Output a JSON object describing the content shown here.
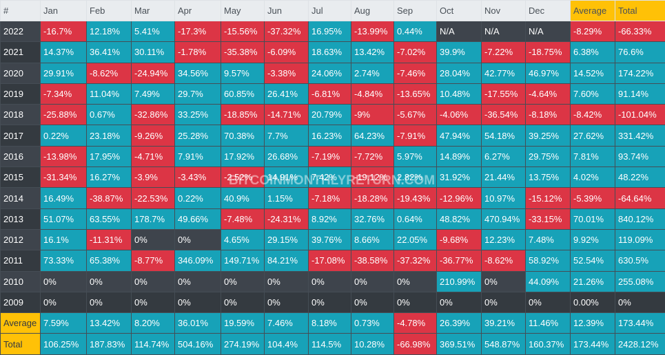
{
  "headers": [
    "#",
    "Jan",
    "Feb",
    "Mar",
    "Apr",
    "May",
    "Jun",
    "Jul",
    "Aug",
    "Sep",
    "Oct",
    "Nov",
    "Dec",
    "Average",
    "Total"
  ],
  "rows": [
    {
      "label": "2022",
      "values": [
        "-16.7%",
        "12.18%",
        "5.41%",
        "-17.3%",
        "-15.56%",
        "-37.32%",
        "16.95%",
        "-13.99%",
        "0.44%",
        "N/A",
        "N/A",
        "N/A",
        "-8.29%",
        "-66.33%"
      ]
    },
    {
      "label": "2021",
      "values": [
        "14.37%",
        "36.41%",
        "30.11%",
        "-1.78%",
        "-35.38%",
        "-6.09%",
        "18.63%",
        "13.42%",
        "-7.02%",
        "39.9%",
        "-7.22%",
        "-18.75%",
        "6.38%",
        "76.6%"
      ]
    },
    {
      "label": "2020",
      "values": [
        "29.91%",
        "-8.62%",
        "-24.94%",
        "34.56%",
        "9.57%",
        "-3.38%",
        "24.06%",
        "2.74%",
        "-7.46%",
        "28.04%",
        "42.77%",
        "46.97%",
        "14.52%",
        "174.22%"
      ]
    },
    {
      "label": "2019",
      "values": [
        "-7.34%",
        "11.04%",
        "7.49%",
        "29.7%",
        "60.85%",
        "26.41%",
        "-6.81%",
        "-4.84%",
        "-13.65%",
        "10.48%",
        "-17.55%",
        "-4.64%",
        "7.60%",
        "91.14%"
      ]
    },
    {
      "label": "2018",
      "values": [
        "-25.88%",
        "0.67%",
        "-32.86%",
        "33.25%",
        "-18.85%",
        "-14.71%",
        "20.79%",
        "-9%",
        "-5.67%",
        "-4.06%",
        "-36.54%",
        "-8.18%",
        "-8.42%",
        "-101.04%"
      ]
    },
    {
      "label": "2017",
      "values": [
        "0.22%",
        "23.18%",
        "-9.26%",
        "25.28%",
        "70.38%",
        "7.7%",
        "16.23%",
        "64.23%",
        "-7.91%",
        "47.94%",
        "54.18%",
        "39.25%",
        "27.62%",
        "331.42%"
      ]
    },
    {
      "label": "2016",
      "values": [
        "-13.98%",
        "17.95%",
        "-4.71%",
        "7.91%",
        "17.92%",
        "26.68%",
        "-7.19%",
        "-7.72%",
        "5.97%",
        "14.89%",
        "6.27%",
        "29.75%",
        "7.81%",
        "93.74%"
      ]
    },
    {
      "label": "2015",
      "values": [
        "-31.34%",
        "16.27%",
        "-3.9%",
        "-3.43%",
        "-2.52%",
        "14.91%",
        "7.42%",
        "-19.12%",
        "2.82%",
        "31.92%",
        "21.44%",
        "13.75%",
        "4.02%",
        "48.22%"
      ]
    },
    {
      "label": "2014",
      "values": [
        "16.49%",
        "-38.87%",
        "-22.53%",
        "0.22%",
        "40.9%",
        "1.15%",
        "-7.18%",
        "-18.28%",
        "-19.43%",
        "-12.96%",
        "10.97%",
        "-15.12%",
        "-5.39%",
        "-64.64%"
      ]
    },
    {
      "label": "2013",
      "values": [
        "51.07%",
        "63.55%",
        "178.7%",
        "49.66%",
        "-7.48%",
        "-24.31%",
        "8.92%",
        "32.76%",
        "0.64%",
        "48.82%",
        "470.94%",
        "-33.15%",
        "70.01%",
        "840.12%"
      ]
    },
    {
      "label": "2012",
      "values": [
        "16.1%",
        "-11.31%",
        "0%",
        "0%",
        "4.65%",
        "29.15%",
        "39.76%",
        "8.66%",
        "22.05%",
        "-9.68%",
        "12.23%",
        "7.48%",
        "9.92%",
        "119.09%"
      ]
    },
    {
      "label": "2011",
      "values": [
        "73.33%",
        "65.38%",
        "-8.77%",
        "346.09%",
        "149.71%",
        "84.21%",
        "-17.08%",
        "-38.58%",
        "-37.32%",
        "-36.77%",
        "-8.62%",
        "58.92%",
        "52.54%",
        "630.5%"
      ]
    },
    {
      "label": "2010",
      "values": [
        "0%",
        "0%",
        "0%",
        "0%",
        "0%",
        "0%",
        "0%",
        "0%",
        "0%",
        "210.99%",
        "0%",
        "44.09%",
        "21.26%",
        "255.08%"
      ]
    },
    {
      "label": "2009",
      "values": [
        "0%",
        "0%",
        "0%",
        "0%",
        "0%",
        "0%",
        "0%",
        "0%",
        "0%",
        "0%",
        "0%",
        "0%",
        "0.00%",
        "0%"
      ]
    }
  ],
  "summary": [
    {
      "label": "Average",
      "values": [
        "7.59%",
        "13.42%",
        "8.20%",
        "36.01%",
        "19.59%",
        "7.46%",
        "8.18%",
        "0.73%",
        "-4.78%",
        "26.39%",
        "39.21%",
        "11.46%",
        "12.39%",
        "173.44%"
      ]
    },
    {
      "label": "Total",
      "values": [
        "106.25%",
        "187.83%",
        "114.74%",
        "504.16%",
        "274.19%",
        "104.4%",
        "114.5%",
        "10.28%",
        "-66.98%",
        "369.51%",
        "548.87%",
        "160.37%",
        "173.44%",
        "2428.12%"
      ]
    }
  ],
  "watermark": "BITCOINMONTHLYRETURN.COM",
  "colors": {
    "positive": "#17a2b8",
    "negative": "#dc3545",
    "highlight": "#ffc107",
    "dark": "#343a40"
  }
}
